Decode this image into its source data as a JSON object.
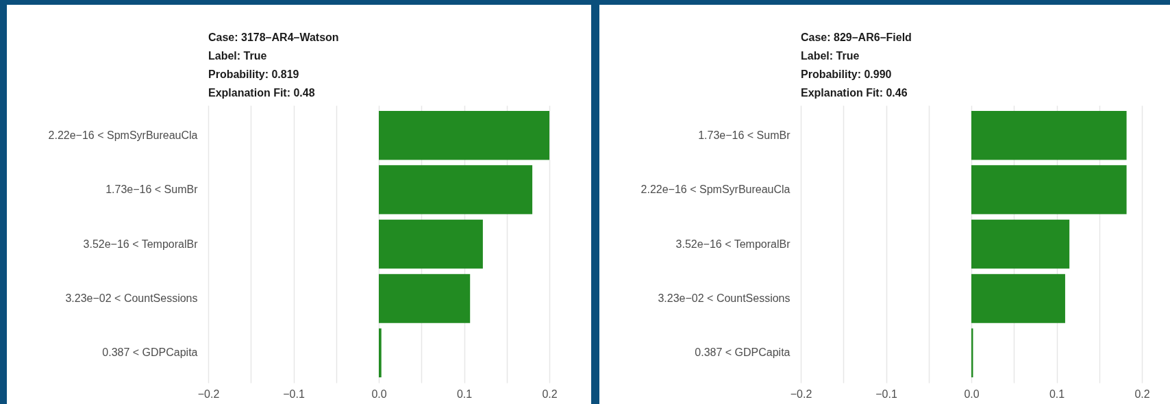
{
  "chart_data": [
    {
      "type": "bar",
      "orientation": "horizontal",
      "title": "Case: 3178–AR4–Watson\nLabel: True\nProbability: 0.819\nExplanation Fit: 0.48",
      "categories": [
        "2.22e−16 < SpmSyrBureauCla",
        "1.73e−16 < SumBr",
        "3.52e−16 < TemporalBr",
        "3.23e−02 < CountSessions",
        "0.387 < GDPCapita"
      ],
      "values": [
        0.2,
        0.18,
        0.122,
        0.107,
        0.003
      ],
      "color": "#228b22",
      "xlim": [
        -0.2,
        0.2
      ],
      "xticks": [
        -0.2,
        {
          "value": -0.15,
          "label": null
        },
        -0.1,
        {
          "value": -0.05,
          "label": null
        },
        {
          "value": 0,
          "label": "0.0"
        },
        {
          "value": 0.05,
          "label": null
        },
        0.1,
        {
          "value": 0.15,
          "label": null
        },
        0.2
      ],
      "grid": "x"
    },
    {
      "type": "bar",
      "orientation": "horizontal",
      "title": "Case: 829–AR6–Field\nLabel: True\nProbability: 0.990\nExplanation Fit: 0.46",
      "categories": [
        "1.73e−16 < SumBr",
        "2.22e−16 < SpmSyrBureauCla",
        "3.52e−16 < TemporalBr",
        "3.23e−02 < CountSessions",
        "0.387 < GDPCapita"
      ],
      "values": [
        0.182,
        0.182,
        0.115,
        0.11,
        0.002
      ],
      "color": "#228b22",
      "xlim": [
        -0.2,
        0.2
      ],
      "xticks": [
        -0.2,
        {
          "value": -0.15,
          "label": null
        },
        -0.1,
        {
          "value": -0.05,
          "label": null
        },
        {
          "value": 0,
          "label": "0.0"
        },
        {
          "value": 0.05,
          "label": null
        },
        0.1,
        {
          "value": 0.15,
          "label": null
        },
        0.2
      ],
      "grid": "x"
    }
  ]
}
